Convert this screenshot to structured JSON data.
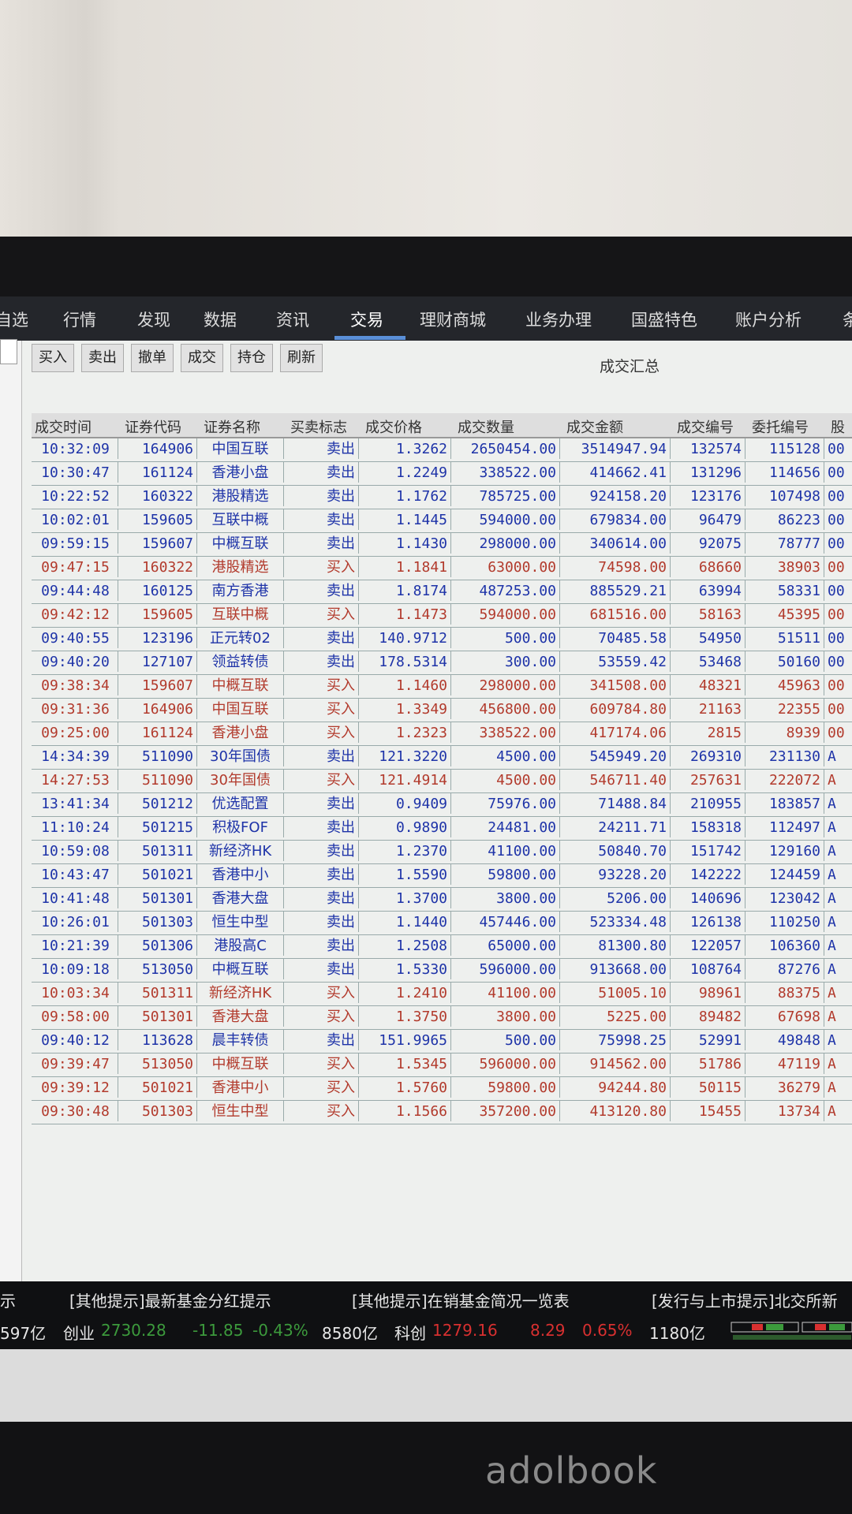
{
  "nav": {
    "items": [
      "自选",
      "行情",
      "发现",
      "数据",
      "资讯",
      "交易",
      "理财商城",
      "业务办理",
      "国盛特色",
      "账户分析",
      "条"
    ],
    "active": "交易"
  },
  "toolbar": {
    "buttons": [
      "买入",
      "卖出",
      "撤单",
      "成交",
      "持仓",
      "刷新"
    ],
    "title": "成交汇总"
  },
  "table": {
    "headers": [
      "成交时间",
      "证券代码",
      "证券名称",
      "买卖标志",
      "成交价格",
      "成交数量",
      "成交金额",
      "成交编号",
      "委托编号",
      "股"
    ],
    "rows": [
      [
        "10:32:09",
        "164906",
        "中国互联",
        "卖出",
        "1.3262",
        "2650454.00",
        "3514947.94",
        "132574",
        "115128",
        "00"
      ],
      [
        "10:30:47",
        "161124",
        "香港小盘",
        "卖出",
        "1.2249",
        "338522.00",
        "414662.41",
        "131296",
        "114656",
        "00"
      ],
      [
        "10:22:52",
        "160322",
        "港股精选",
        "卖出",
        "1.1762",
        "785725.00",
        "924158.20",
        "123176",
        "107498",
        "00"
      ],
      [
        "10:02:01",
        "159605",
        "互联中概",
        "卖出",
        "1.1445",
        "594000.00",
        "679834.00",
        "96479",
        "86223",
        "00"
      ],
      [
        "09:59:15",
        "159607",
        "中概互联",
        "卖出",
        "1.1430",
        "298000.00",
        "340614.00",
        "92075",
        "78777",
        "00"
      ],
      [
        "09:47:15",
        "160322",
        "港股精选",
        "买入",
        "1.1841",
        "63000.00",
        "74598.00",
        "68660",
        "38903",
        "00"
      ],
      [
        "09:44:48",
        "160125",
        "南方香港",
        "卖出",
        "1.8174",
        "487253.00",
        "885529.21",
        "63994",
        "58331",
        "00"
      ],
      [
        "09:42:12",
        "159605",
        "互联中概",
        "买入",
        "1.1473",
        "594000.00",
        "681516.00",
        "58163",
        "45395",
        "00"
      ],
      [
        "09:40:55",
        "123196",
        "正元转02",
        "卖出",
        "140.9712",
        "500.00",
        "70485.58",
        "54950",
        "51511",
        "00"
      ],
      [
        "09:40:20",
        "127107",
        "领益转债",
        "卖出",
        "178.5314",
        "300.00",
        "53559.42",
        "53468",
        "50160",
        "00"
      ],
      [
        "09:38:34",
        "159607",
        "中概互联",
        "买入",
        "1.1460",
        "298000.00",
        "341508.00",
        "48321",
        "45963",
        "00"
      ],
      [
        "09:31:36",
        "164906",
        "中国互联",
        "买入",
        "1.3349",
        "456800.00",
        "609784.80",
        "21163",
        "22355",
        "00"
      ],
      [
        "09:25:00",
        "161124",
        "香港小盘",
        "买入",
        "1.2323",
        "338522.00",
        "417174.06",
        "2815",
        "8939",
        "00"
      ],
      [
        "14:34:39",
        "511090",
        "30年国债",
        "卖出",
        "121.3220",
        "4500.00",
        "545949.20",
        "269310",
        "231130",
        "A"
      ],
      [
        "14:27:53",
        "511090",
        "30年国债",
        "买入",
        "121.4914",
        "4500.00",
        "546711.40",
        "257631",
        "222072",
        "A"
      ],
      [
        "13:41:34",
        "501212",
        "优选配置",
        "卖出",
        "0.9409",
        "75976.00",
        "71488.84",
        "210955",
        "183857",
        "A"
      ],
      [
        "11:10:24",
        "501215",
        "积极FOF",
        "卖出",
        "0.9890",
        "24481.00",
        "24211.71",
        "158318",
        "112497",
        "A"
      ],
      [
        "10:59:08",
        "501311",
        "新经济HK",
        "卖出",
        "1.2370",
        "41100.00",
        "50840.70",
        "151742",
        "129160",
        "A"
      ],
      [
        "10:43:47",
        "501021",
        "香港中小",
        "卖出",
        "1.5590",
        "59800.00",
        "93228.20",
        "142222",
        "124459",
        "A"
      ],
      [
        "10:41:48",
        "501301",
        "香港大盘",
        "卖出",
        "1.3700",
        "3800.00",
        "5206.00",
        "140696",
        "123042",
        "A"
      ],
      [
        "10:26:01",
        "501303",
        "恒生中型",
        "卖出",
        "1.1440",
        "457446.00",
        "523334.48",
        "126138",
        "110250",
        "A"
      ],
      [
        "10:21:39",
        "501306",
        "港股高C",
        "卖出",
        "1.2508",
        "65000.00",
        "81300.80",
        "122057",
        "106360",
        "A"
      ],
      [
        "10:09:18",
        "513050",
        "中概互联",
        "卖出",
        "1.5330",
        "596000.00",
        "913668.00",
        "108764",
        "87276",
        "A"
      ],
      [
        "10:03:34",
        "501311",
        "新经济HK",
        "买入",
        "1.2410",
        "41100.00",
        "51005.10",
        "98961",
        "88375",
        "A"
      ],
      [
        "09:58:00",
        "501301",
        "香港大盘",
        "买入",
        "1.3750",
        "3800.00",
        "5225.00",
        "89482",
        "67698",
        "A"
      ],
      [
        "09:40:12",
        "113628",
        "晨丰转债",
        "卖出",
        "151.9965",
        "500.00",
        "75998.25",
        "52991",
        "49848",
        "A"
      ],
      [
        "09:39:47",
        "513050",
        "中概互联",
        "买入",
        "1.5345",
        "596000.00",
        "914562.00",
        "51786",
        "47119",
        "A"
      ],
      [
        "09:39:12",
        "501021",
        "香港中小",
        "买入",
        "1.5760",
        "59800.00",
        "94244.80",
        "50115",
        "36279",
        "A"
      ],
      [
        "09:30:48",
        "501303",
        "恒生中型",
        "买入",
        "1.1566",
        "357200.00",
        "413120.80",
        "15455",
        "13734",
        "A"
      ]
    ]
  },
  "ticker": {
    "items": [
      "示",
      "[其他提示]最新基金分红提示",
      "[其他提示]在销基金简况一览表",
      "[发行与上市提示]北交所新"
    ]
  },
  "index_bar": {
    "prev_volume": "597亿",
    "chuangye": {
      "label": "创业",
      "value": "2730.28",
      "change": "-11.85",
      "pct": "-0.43%",
      "volume": "8580亿"
    },
    "kechuang": {
      "label": "科创",
      "value": "1279.16",
      "change": "8.29",
      "pct": "0.65%",
      "volume": "1180亿"
    }
  },
  "colors": {
    "buy": "#b23a2c",
    "sell": "#1e33a8",
    "up": "#d83030",
    "down": "#3c9a3c",
    "nav_bg": "#24262b"
  },
  "laptop_logo": "adolbook"
}
